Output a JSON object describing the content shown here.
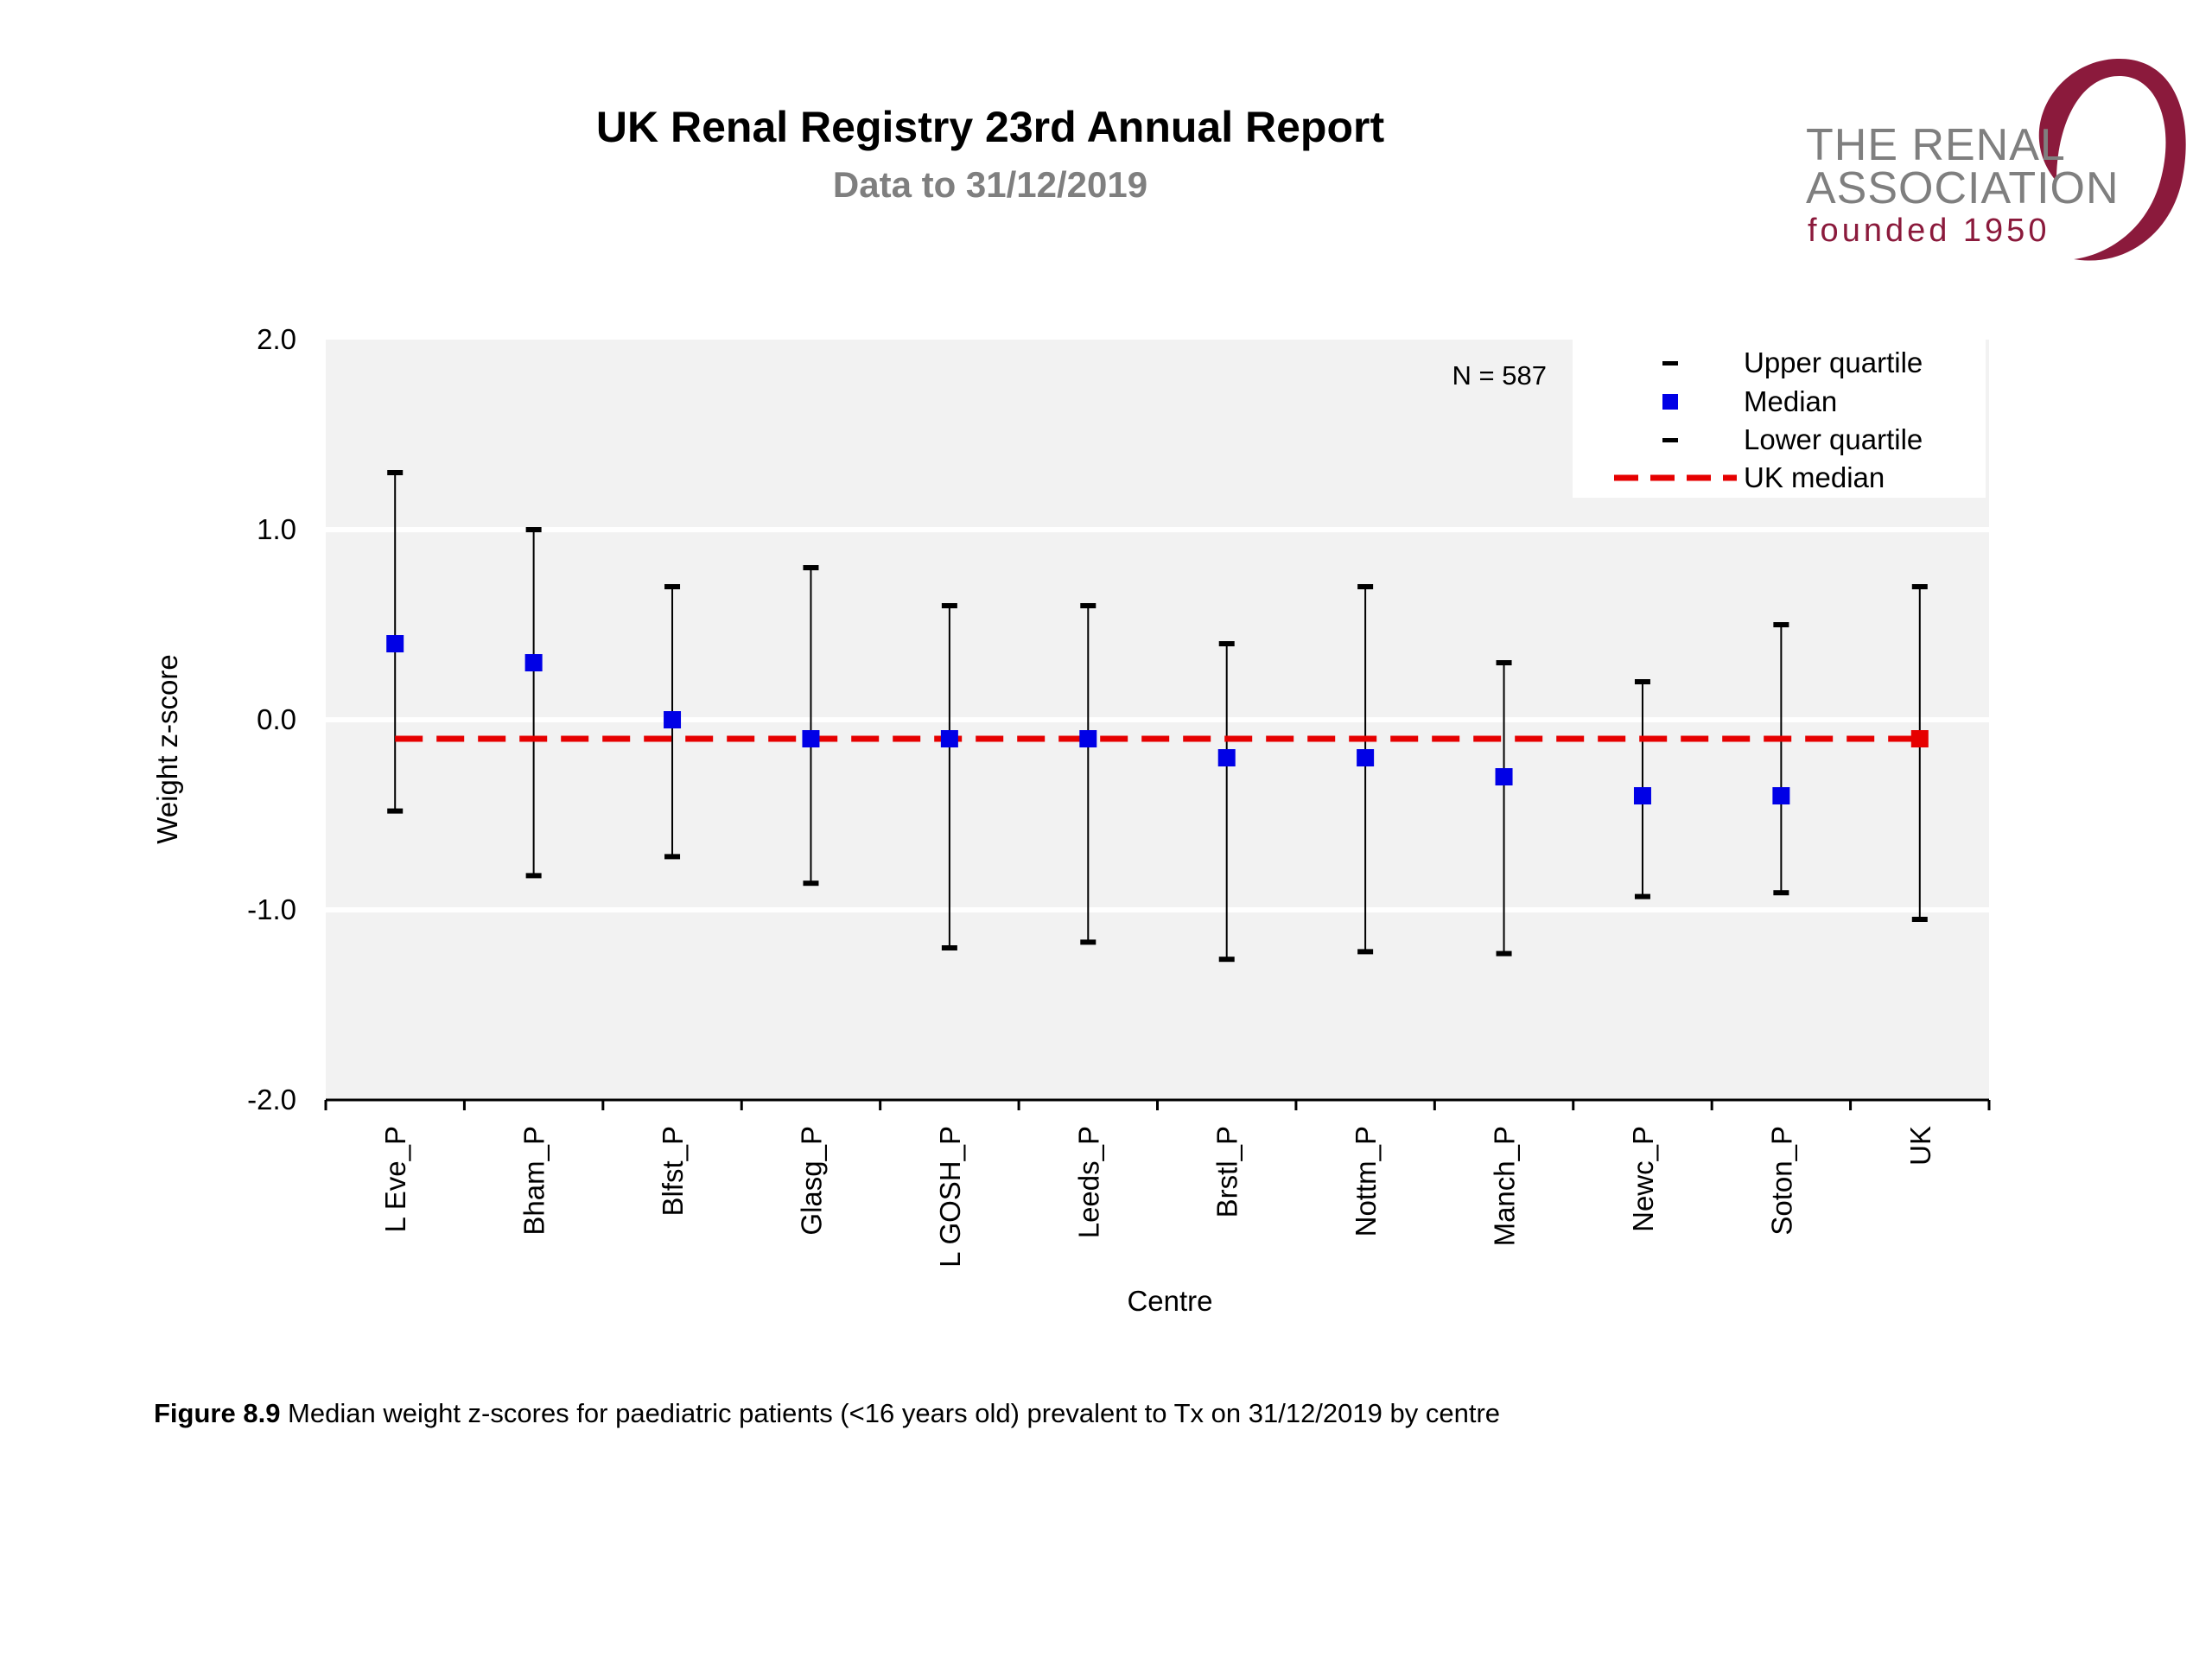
{
  "header": {
    "title": "UK Renal Registry 23rd Annual Report",
    "subtitle": "Data to 31/12/2019"
  },
  "logo": {
    "line1": "THE RENAL",
    "line2": "ASSOCIATION",
    "line3": "founded 1950",
    "color": "#8b1a3c"
  },
  "chart_data": {
    "type": "scatter",
    "xlabel": "Centre",
    "ylabel": "Weight z-score",
    "ylim": [
      -2.0,
      2.0
    ],
    "yticks": [
      "2.0",
      "1.0",
      "0.0",
      "-1.0",
      "-2.0"
    ],
    "ytick_values": [
      2.0,
      1.0,
      0.0,
      -1.0,
      -2.0
    ],
    "categories": [
      "L Eve_P",
      "Bham_P",
      "Blfst_P",
      "Glasg_P",
      "L GOSH_P",
      "Leeds_P",
      "Brstl_P",
      "Nottm_P",
      "Manch_P",
      "Newc_P",
      "Soton_P",
      "UK"
    ],
    "series": [
      {
        "name": "Upper quartile",
        "values": [
          1.3,
          1.0,
          0.7,
          0.8,
          0.6,
          0.6,
          0.4,
          0.7,
          0.3,
          0.2,
          0.5,
          0.7
        ]
      },
      {
        "name": "Median",
        "values": [
          0.4,
          0.3,
          0.0,
          -0.1,
          -0.1,
          -0.1,
          -0.2,
          -0.2,
          -0.3,
          -0.4,
          -0.4,
          -0.1
        ]
      },
      {
        "name": "Lower quartile",
        "values": [
          -0.48,
          -0.82,
          -0.72,
          -0.86,
          -1.2,
          -1.17,
          -1.26,
          -1.22,
          -1.23,
          -0.93,
          -0.91,
          -1.05
        ]
      },
      {
        "name": "UK median",
        "value": -0.1
      }
    ],
    "annotation": "N = 587",
    "legend_position": "top-right",
    "grid": true,
    "colors": {
      "median": "#0000e6",
      "uk_point": "#e60000",
      "uk_median_line": "#e60000",
      "plot_bg": "#f2f2f2",
      "whisker": "#000000"
    }
  },
  "caption": {
    "label": "Figure 8.9",
    "text": " Median weight z-scores for paediatric patients (<16 years old) prevalent to Tx on 31/12/2019 by centre"
  }
}
